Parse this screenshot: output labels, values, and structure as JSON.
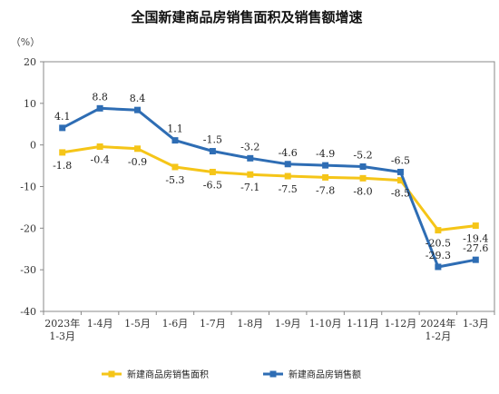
{
  "chart_data": {
    "type": "line",
    "title": "全国新建商品房销售面积及销售额增速",
    "unit_label": "（%）",
    "categories": [
      [
        "2023年",
        "1-3月"
      ],
      [
        "1-4月"
      ],
      [
        "1-5月"
      ],
      [
        "1-6月"
      ],
      [
        "1-7月"
      ],
      [
        "1-8月"
      ],
      [
        "1-9月"
      ],
      [
        "1-10月"
      ],
      [
        "1-11月"
      ],
      [
        "1-12月"
      ],
      [
        "2024年",
        "1-2月"
      ],
      [
        "1-3月"
      ]
    ],
    "yticks": [
      20,
      10,
      0,
      -10,
      -20,
      -30,
      -40
    ],
    "ylim": [
      -40,
      20
    ],
    "legend_position": "bottom",
    "series": [
      {
        "name": "新建商品房销售面积",
        "color": "#f5c518",
        "values": [
          -1.8,
          -0.4,
          -0.9,
          -5.3,
          -6.5,
          -7.1,
          -7.5,
          -7.8,
          -8.0,
          -8.5,
          -20.5,
          -19.4
        ],
        "labels": [
          "-1.8",
          "-0.4",
          "-0.9",
          "-5.3",
          "-6.5",
          "-7.1",
          "-7.5",
          "-7.8",
          "-8.0",
          "-8.5",
          "-20.5",
          "-19.4"
        ],
        "label_side": "below"
      },
      {
        "name": "新建商品房销售额",
        "color": "#2e6db4",
        "values": [
          4.1,
          8.8,
          8.4,
          1.1,
          -1.5,
          -3.2,
          -4.6,
          -4.9,
          -5.2,
          -6.5,
          -29.3,
          -27.6
        ],
        "labels": [
          "4.1",
          "8.8",
          "8.4",
          "1.1",
          "-1.5",
          "-3.2",
          "-4.6",
          "-4.9",
          "-5.2",
          "-6.5",
          "-29.3",
          "-27.6"
        ],
        "label_side": "above"
      }
    ]
  }
}
